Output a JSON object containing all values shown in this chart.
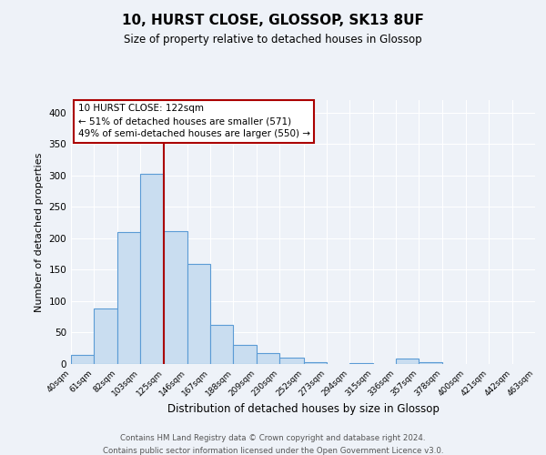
{
  "title": "10, HURST CLOSE, GLOSSOP, SK13 8UF",
  "subtitle": "Size of property relative to detached houses in Glossop",
  "xlabel": "Distribution of detached houses by size in Glossop",
  "ylabel": "Number of detached properties",
  "bin_edges": [
    40,
    61,
    82,
    103,
    125,
    146,
    167,
    188,
    209,
    230,
    252,
    273,
    294,
    315,
    336,
    357,
    378,
    400,
    421,
    442,
    463
  ],
  "bar_heights": [
    15,
    88,
    210,
    303,
    212,
    160,
    63,
    30,
    18,
    10,
    3,
    0,
    1,
    0,
    8,
    3,
    0,
    0,
    0,
    0
  ],
  "tick_labels": [
    "40sqm",
    "61sqm",
    "82sqm",
    "103sqm",
    "125sqm",
    "146sqm",
    "167sqm",
    "188sqm",
    "209sqm",
    "230sqm",
    "252sqm",
    "273sqm",
    "294sqm",
    "315sqm",
    "336sqm",
    "357sqm",
    "378sqm",
    "400sqm",
    "421sqm",
    "442sqm",
    "463sqm"
  ],
  "bar_color": "#c9ddf0",
  "bar_edge_color": "#5b9bd5",
  "vline_x": 125,
  "vline_color": "#aa0000",
  "annotation_title": "10 HURST CLOSE: 122sqm",
  "annotation_line1": "← 51% of detached houses are smaller (571)",
  "annotation_line2": "49% of semi-detached houses are larger (550) →",
  "annotation_box_color": "#aa0000",
  "ylim": [
    0,
    420
  ],
  "yticks": [
    0,
    50,
    100,
    150,
    200,
    250,
    300,
    350,
    400
  ],
  "footnote1": "Contains HM Land Registry data © Crown copyright and database right 2024.",
  "footnote2": "Contains public sector information licensed under the Open Government Licence v3.0.",
  "bg_color": "#eef2f8",
  "plot_bg_color": "#eef2f8",
  "grid_color": "#ffffff"
}
